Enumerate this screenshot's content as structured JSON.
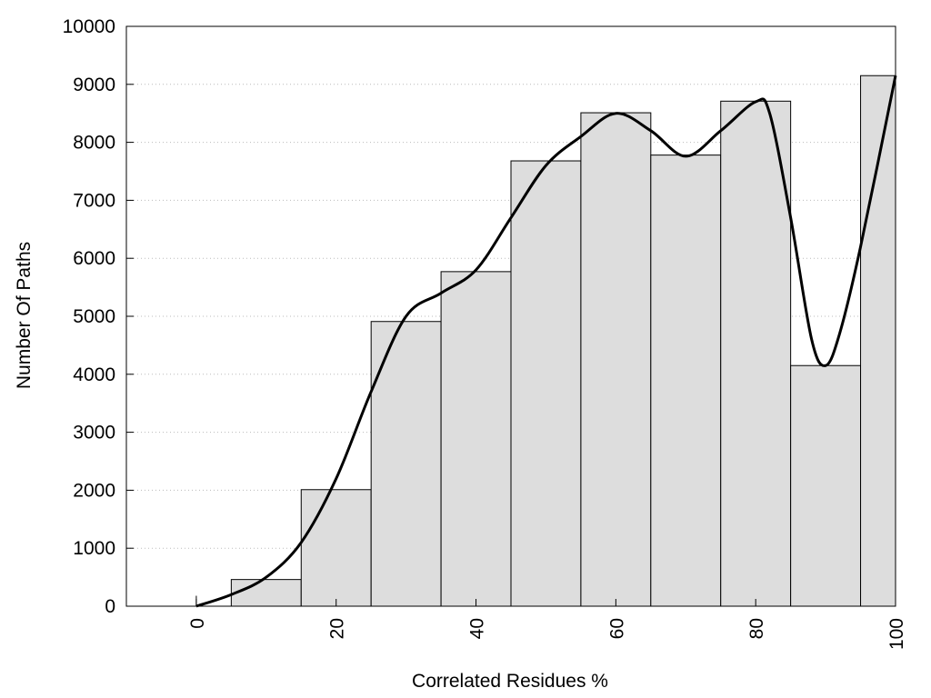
{
  "chart_data": {
    "type": "bar",
    "title": "",
    "xlabel": "Correlated Residues %",
    "ylabel": "Number Of Paths",
    "xlim": [
      -10,
      100
    ],
    "ylim": [
      0,
      10000
    ],
    "grid": "horizontal dotted",
    "x_ticks": [
      0,
      20,
      40,
      60,
      80,
      100
    ],
    "y_ticks": [
      0,
      1000,
      2000,
      3000,
      4000,
      5000,
      6000,
      7000,
      8000,
      9000,
      10000
    ],
    "bins": [
      {
        "center": 0,
        "value": 180
      },
      {
        "center": 10,
        "value": 460
      },
      {
        "center": 20,
        "value": 2010
      },
      {
        "center": 30,
        "value": 4910
      },
      {
        "center": 40,
        "value": 5770
      },
      {
        "center": 50,
        "value": 7680
      },
      {
        "center": 60,
        "value": 8510
      },
      {
        "center": 70,
        "value": 7780
      },
      {
        "center": 80,
        "value": 8710
      },
      {
        "center": 90,
        "value": 4150
      },
      {
        "center": 100,
        "value": 9150
      }
    ],
    "smooth_curve": {
      "x": [
        0,
        5,
        10,
        15,
        20,
        25,
        30,
        35,
        40,
        45,
        50,
        55,
        60,
        65,
        70,
        75,
        80,
        82,
        85,
        88,
        90,
        92,
        95,
        100
      ],
      "y": [
        0,
        200,
        500,
        1100,
        2200,
        3700,
        5000,
        5400,
        5800,
        6700,
        7600,
        8100,
        8500,
        8200,
        7760,
        8200,
        8700,
        8500,
        6700,
        4600,
        4150,
        4700,
        6200,
        9150
      ]
    },
    "colors": {
      "bar_fill": "#dddddd",
      "bar_stroke": "#000000",
      "curve": "#000000",
      "grid": "#bbbbbb"
    }
  }
}
